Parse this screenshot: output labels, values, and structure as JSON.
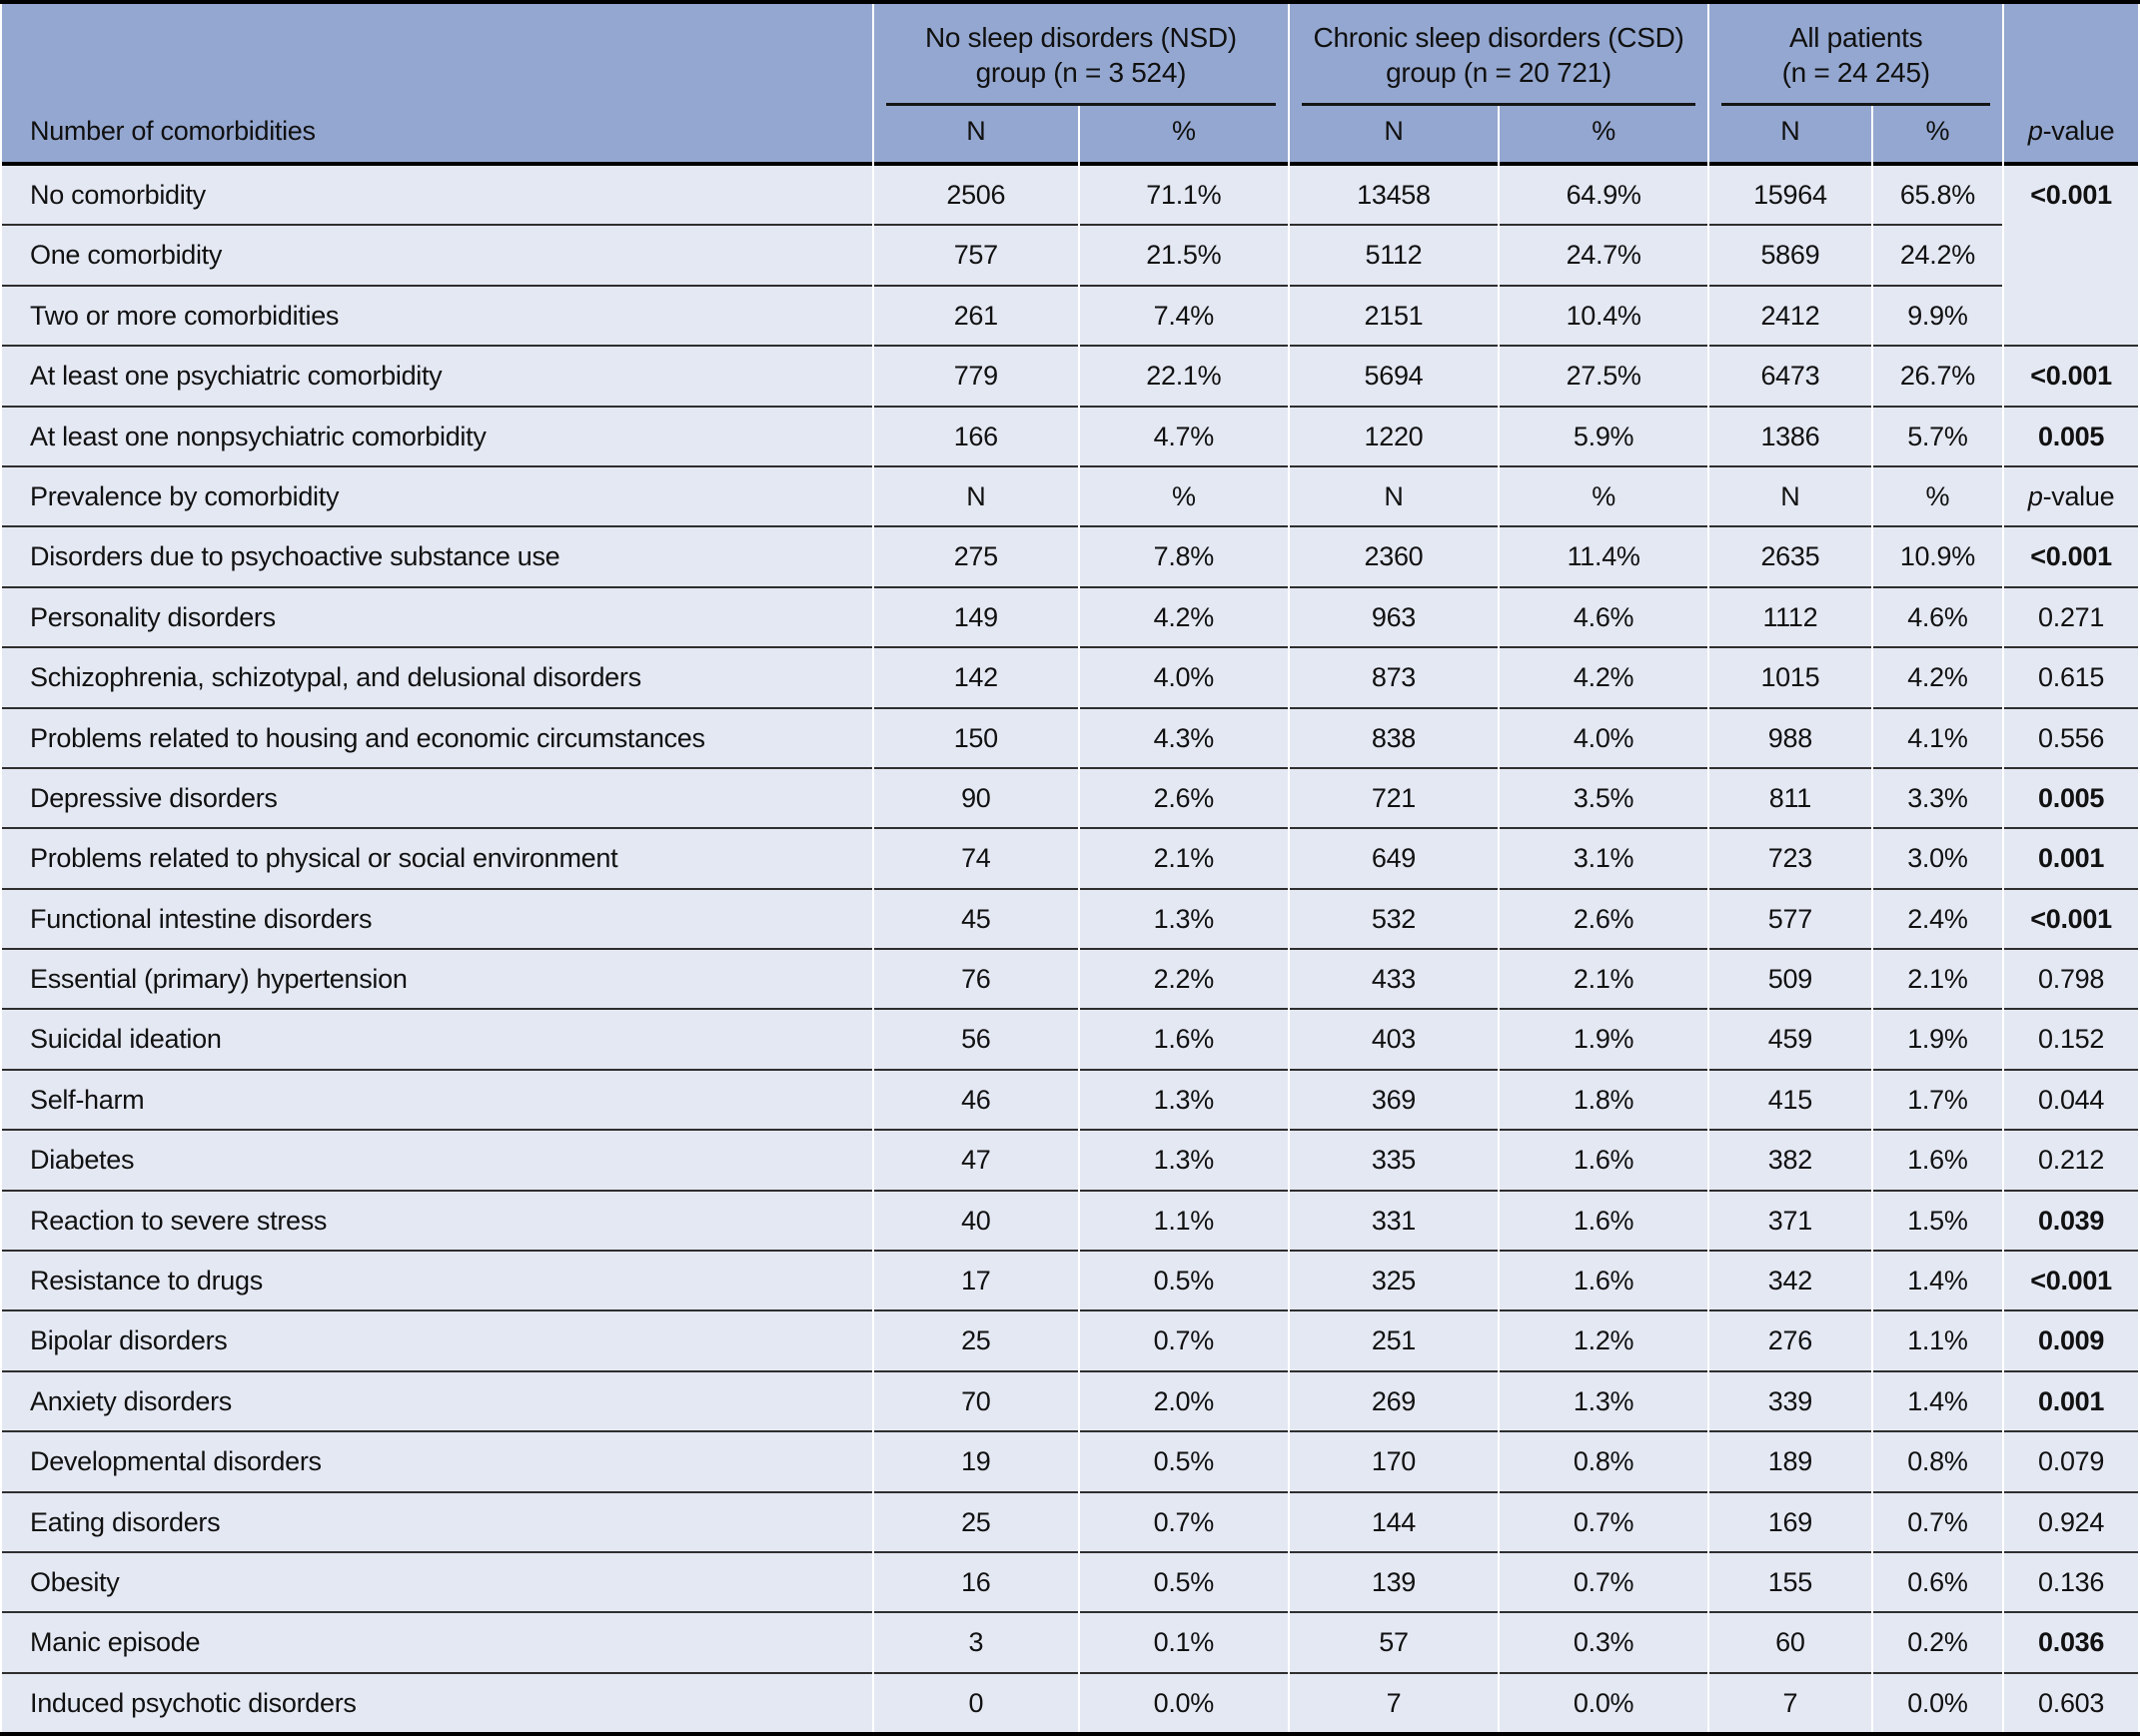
{
  "table": {
    "colors": {
      "header_bg": "#94a7d0",
      "row_bg": "#e4e8f3",
      "separator_dark": "#2e2e2e",
      "frame_black": "#000000"
    },
    "row_header_label": "Number of comorbidities",
    "col_groups": [
      {
        "line1": "No sleep disorders (NSD)",
        "line2": "group (n = 3 524)"
      },
      {
        "line1": "Chronic sleep disorders (CSD)",
        "line2": "group (n = 20 721)"
      },
      {
        "line1": "All patients",
        "line2": "(n = 24 245)"
      }
    ],
    "sub_col_labels": [
      "N",
      "%",
      "N",
      "%",
      "N",
      "%"
    ],
    "p_label": {
      "italic": "p",
      "rest": "-value"
    },
    "rows": [
      {
        "type": "data",
        "label": "No comorbidity",
        "nsd_n": "2506",
        "nsd_pct": "71.1%",
        "csd_n": "13458",
        "csd_pct": "64.9%",
        "all_n": "15964",
        "all_pct": "65.8%",
        "p": "<0.001",
        "p_bold": true,
        "p_rowspan": 3
      },
      {
        "type": "data",
        "label": "One comorbidity",
        "nsd_n": "757",
        "nsd_pct": "21.5%",
        "csd_n": "5112",
        "csd_pct": "24.7%",
        "all_n": "5869",
        "all_pct": "24.2%",
        "p": null,
        "p_covered": true
      },
      {
        "type": "data",
        "label": "Two or more comorbidities",
        "nsd_n": "261",
        "nsd_pct": "7.4%",
        "csd_n": "2151",
        "csd_pct": "10.4%",
        "all_n": "2412",
        "all_pct": "9.9%",
        "p": null,
        "p_covered": true
      },
      {
        "type": "data",
        "label": "At least one psychiatric comorbidity",
        "nsd_n": "779",
        "nsd_pct": "22.1%",
        "csd_n": "5694",
        "csd_pct": "27.5%",
        "all_n": "6473",
        "all_pct": "26.7%",
        "p": "<0.001",
        "p_bold": true
      },
      {
        "type": "data",
        "label": "At least one nonpsychiatric comorbidity",
        "nsd_n": "166",
        "nsd_pct": "4.7%",
        "csd_n": "1220",
        "csd_pct": "5.9%",
        "all_n": "1386",
        "all_pct": "5.7%",
        "p": "0.005",
        "p_bold": true
      },
      {
        "type": "subheader",
        "label": "Prevalence by comorbidity"
      },
      {
        "type": "data",
        "label": "Disorders due to psychoactive substance use",
        "nsd_n": "275",
        "nsd_pct": "7.8%",
        "csd_n": "2360",
        "csd_pct": "11.4%",
        "all_n": "2635",
        "all_pct": "10.9%",
        "p": "<0.001",
        "p_bold": true
      },
      {
        "type": "data",
        "label": "Personality disorders",
        "nsd_n": "149",
        "nsd_pct": "4.2%",
        "csd_n": "963",
        "csd_pct": "4.6%",
        "all_n": "1112",
        "all_pct": "4.6%",
        "p": "0.271",
        "p_bold": false
      },
      {
        "type": "data",
        "label": "Schizophrenia, schizotypal, and delusional disorders",
        "nsd_n": "142",
        "nsd_pct": "4.0%",
        "csd_n": "873",
        "csd_pct": "4.2%",
        "all_n": "1015",
        "all_pct": "4.2%",
        "p": "0.615",
        "p_bold": false
      },
      {
        "type": "data",
        "label": "Problems related to housing and economic circumstances",
        "nsd_n": "150",
        "nsd_pct": "4.3%",
        "csd_n": "838",
        "csd_pct": "4.0%",
        "all_n": "988",
        "all_pct": "4.1%",
        "p": "0.556",
        "p_bold": false
      },
      {
        "type": "data",
        "label": "Depressive disorders",
        "nsd_n": "90",
        "nsd_pct": "2.6%",
        "csd_n": "721",
        "csd_pct": "3.5%",
        "all_n": "811",
        "all_pct": "3.3%",
        "p": "0.005",
        "p_bold": true
      },
      {
        "type": "data",
        "label": "Problems related to physical or social environment",
        "nsd_n": "74",
        "nsd_pct": "2.1%",
        "csd_n": "649",
        "csd_pct": "3.1%",
        "all_n": "723",
        "all_pct": "3.0%",
        "p": "0.001",
        "p_bold": true
      },
      {
        "type": "data",
        "label": "Functional intestine disorders",
        "nsd_n": "45",
        "nsd_pct": "1.3%",
        "csd_n": "532",
        "csd_pct": "2.6%",
        "all_n": "577",
        "all_pct": "2.4%",
        "p": "<0.001",
        "p_bold": true
      },
      {
        "type": "data",
        "label": "Essential (primary) hypertension",
        "nsd_n": "76",
        "nsd_pct": "2.2%",
        "csd_n": "433",
        "csd_pct": "2.1%",
        "all_n": "509",
        "all_pct": "2.1%",
        "p": "0.798",
        "p_bold": false
      },
      {
        "type": "data",
        "label": "Suicidal ideation",
        "nsd_n": "56",
        "nsd_pct": "1.6%",
        "csd_n": "403",
        "csd_pct": "1.9%",
        "all_n": "459",
        "all_pct": "1.9%",
        "p": "0.152",
        "p_bold": false
      },
      {
        "type": "data",
        "label": "Self-harm",
        "nsd_n": "46",
        "nsd_pct": "1.3%",
        "csd_n": "369",
        "csd_pct": "1.8%",
        "all_n": "415",
        "all_pct": "1.7%",
        "p": "0.044",
        "p_bold": false
      },
      {
        "type": "data",
        "label": "Diabetes",
        "nsd_n": "47",
        "nsd_pct": "1.3%",
        "csd_n": "335",
        "csd_pct": "1.6%",
        "all_n": "382",
        "all_pct": "1.6%",
        "p": "0.212",
        "p_bold": false
      },
      {
        "type": "data",
        "label": "Reaction to severe stress",
        "nsd_n": "40",
        "nsd_pct": "1.1%",
        "csd_n": "331",
        "csd_pct": "1.6%",
        "all_n": "371",
        "all_pct": "1.5%",
        "p": "0.039",
        "p_bold": true
      },
      {
        "type": "data",
        "label": "Resistance to drugs",
        "nsd_n": "17",
        "nsd_pct": "0.5%",
        "csd_n": "325",
        "csd_pct": "1.6%",
        "all_n": "342",
        "all_pct": "1.4%",
        "p": "<0.001",
        "p_bold": true
      },
      {
        "type": "data",
        "label": "Bipolar disorders",
        "nsd_n": "25",
        "nsd_pct": "0.7%",
        "csd_n": "251",
        "csd_pct": "1.2%",
        "all_n": "276",
        "all_pct": "1.1%",
        "p": "0.009",
        "p_bold": true
      },
      {
        "type": "data",
        "label": "Anxiety disorders",
        "nsd_n": "70",
        "nsd_pct": "2.0%",
        "csd_n": "269",
        "csd_pct": "1.3%",
        "all_n": "339",
        "all_pct": "1.4%",
        "p": "0.001",
        "p_bold": true
      },
      {
        "type": "data",
        "label": "Developmental disorders",
        "nsd_n": "19",
        "nsd_pct": "0.5%",
        "csd_n": "170",
        "csd_pct": "0.8%",
        "all_n": "189",
        "all_pct": "0.8%",
        "p": "0.079",
        "p_bold": false
      },
      {
        "type": "data",
        "label": "Eating disorders",
        "nsd_n": "25",
        "nsd_pct": "0.7%",
        "csd_n": "144",
        "csd_pct": "0.7%",
        "all_n": "169",
        "all_pct": "0.7%",
        "p": "0.924",
        "p_bold": false
      },
      {
        "type": "data",
        "label": "Obesity",
        "nsd_n": "16",
        "nsd_pct": "0.5%",
        "csd_n": "139",
        "csd_pct": "0.7%",
        "all_n": "155",
        "all_pct": "0.6%",
        "p": "0.136",
        "p_bold": false
      },
      {
        "type": "data",
        "label": "Manic episode",
        "nsd_n": "3",
        "nsd_pct": "0.1%",
        "csd_n": "57",
        "csd_pct": "0.3%",
        "all_n": "60",
        "all_pct": "0.2%",
        "p": "0.036",
        "p_bold": true
      },
      {
        "type": "data",
        "label": "Induced psychotic disorders",
        "nsd_n": "0",
        "nsd_pct": "0.0%",
        "csd_n": "7",
        "csd_pct": "0.0%",
        "all_n": "7",
        "all_pct": "0.0%",
        "p": "0.603",
        "p_bold": false
      }
    ]
  }
}
